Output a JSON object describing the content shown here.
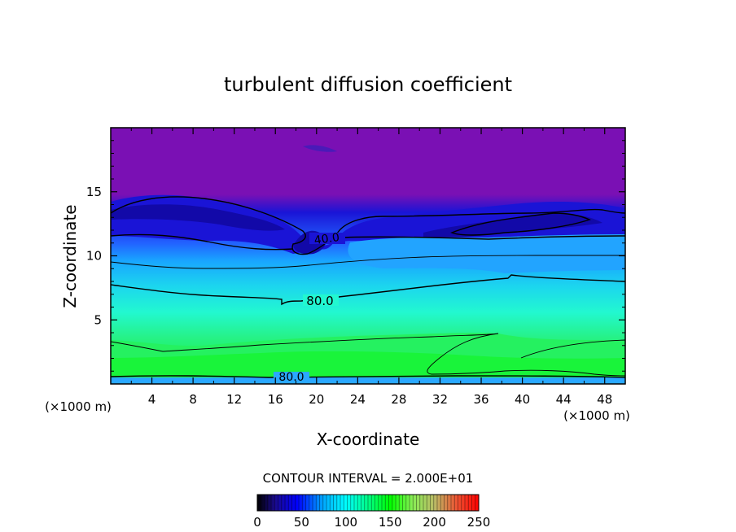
{
  "chart_data": {
    "type": "heatmap",
    "title": "turbulent diffusion coefficient",
    "xlabel": "X-coordinate",
    "ylabel": "Z-coordinate",
    "x_unit_label": "(×1000 m)",
    "x_unit_label_right": "(×1000 m)",
    "xlim": [
      0,
      50
    ],
    "ylim": [
      0,
      20
    ],
    "x_ticks": [
      4,
      8,
      12,
      16,
      20,
      24,
      28,
      32,
      36,
      40,
      44,
      48
    ],
    "y_ticks": [
      5,
      10,
      15
    ],
    "contour_interval_text": "CONTOUR INTERVAL = 2.000E+01",
    "contour_labels": [
      "40.0",
      "80.0",
      "80.0"
    ],
    "colorbar": {
      "range": [
        0,
        250
      ],
      "ticks": [
        0,
        50,
        100,
        150,
        200,
        250
      ],
      "colors": [
        "#000000",
        "#1a0a8c",
        "#0000ff",
        "#00aaff",
        "#00ffff",
        "#00ff88",
        "#00ff00",
        "#66ff44",
        "#aadd66",
        "#dd8866",
        "#ff3300",
        "#ff0000"
      ]
    },
    "field_colors": {
      "top": "#7a10b4",
      "dark_blue": "#1a14d6",
      "blue": "#2262ff",
      "sky": "#1cc8ff",
      "cyan": "#20ffd8",
      "green": "#25f160",
      "bright_green": "#19f43a"
    }
  }
}
